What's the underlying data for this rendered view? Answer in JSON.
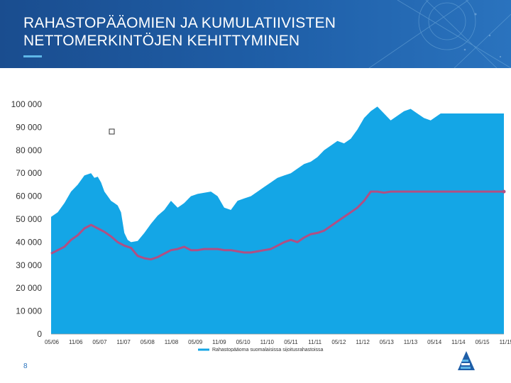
{
  "slide": {
    "title": "RAHASTOPÄÄOMIEN JA KUMULATIIVISTEN\nNETTOMERKINTÖJEN KEHITTYMINEN",
    "page_number": "8"
  },
  "colors": {
    "banner": "#1f5fa8",
    "area_fill": "#14a6e6",
    "line": "#b04f84",
    "accent": "#5fb7e8"
  },
  "logo": {
    "icon": "company-logo-icon"
  },
  "chart_data": {
    "type": "area",
    "title": "",
    "xlabel": "",
    "ylabel": "",
    "ylim": [
      0,
      100000
    ],
    "yticks": [
      "0",
      "10 000",
      "20 000",
      "30 000",
      "40 000",
      "50 000",
      "60 000",
      "70 000",
      "80 000",
      "90 000",
      "100 000"
    ],
    "xticks": [
      "05/06",
      "11/06",
      "05/07",
      "11/07",
      "05/08",
      "11/08",
      "05/09",
      "11/09",
      "05/10",
      "11/10",
      "05/11",
      "11/11",
      "05/12",
      "11/12",
      "05/13",
      "11/13",
      "05/14",
      "11/14",
      "05/15",
      "11/15"
    ],
    "grid": false,
    "legend_position": "bottom",
    "series": [
      {
        "name": "Rahastopääoma suomalaisissa sijoitusrahastoissa",
        "type": "area",
        "color": "#14a6e6",
        "x": [
          0,
          2,
          4,
          6,
          8,
          10,
          12,
          13,
          14,
          15,
          16,
          17,
          18,
          19,
          20,
          21,
          22,
          23,
          24,
          26,
          28,
          30,
          32,
          34,
          36,
          38,
          40,
          42,
          44,
          46,
          48,
          50,
          52,
          54,
          56,
          58,
          60,
          62,
          64,
          66,
          68,
          70,
          72,
          74,
          76,
          78,
          80,
          82,
          84,
          86,
          88,
          90,
          92,
          94,
          96,
          98,
          100,
          102,
          104,
          106,
          108,
          110,
          112,
          114,
          116,
          117,
          118,
          119,
          120,
          121,
          122,
          123,
          124,
          125,
          126,
          127,
          128,
          129,
          130,
          131,
          132,
          133,
          134,
          135,
          136
        ],
        "y": [
          51000,
          53000,
          57000,
          62000,
          65000,
          69000,
          70000,
          68000,
          68500,
          66000,
          62000,
          60000,
          58000,
          57000,
          56000,
          53000,
          44000,
          41000,
          40000,
          40500,
          44000,
          48000,
          51500,
          54000,
          58000,
          55000,
          57000,
          60000,
          61000,
          61500,
          62000,
          60000,
          55000,
          54000,
          58000,
          59000,
          60000,
          62000,
          64000,
          66000,
          68000,
          69000,
          70000,
          72000,
          74000,
          75000,
          77000,
          80000,
          82000,
          84000,
          83000,
          85000,
          89000,
          94000,
          97000,
          99000,
          96000,
          93000,
          95000,
          97000,
          98000,
          96000,
          94000,
          93000,
          95000,
          96000,
          96000,
          96000,
          96000,
          96000,
          96000,
          96000,
          96000,
          96000,
          96000,
          96000,
          96000,
          96000,
          96000,
          96000,
          96000,
          96000,
          96000,
          96000,
          96000
        ]
      },
      {
        "name": "",
        "type": "line",
        "color": "#b04f84",
        "x": [
          0,
          2,
          4,
          6,
          8,
          10,
          12,
          14,
          16,
          18,
          20,
          22,
          24,
          26,
          28,
          30,
          32,
          34,
          36,
          38,
          40,
          42,
          44,
          46,
          48,
          50,
          52,
          54,
          56,
          58,
          60,
          62,
          64,
          66,
          68,
          70,
          72,
          74,
          76,
          78,
          80,
          82,
          84,
          86,
          88,
          90,
          92,
          94,
          96,
          98,
          100,
          102,
          104,
          106,
          108,
          110,
          112,
          114,
          116,
          118,
          120,
          122,
          124,
          126,
          128,
          130,
          132,
          134,
          136
        ],
        "y": [
          35000,
          36500,
          38000,
          41000,
          43000,
          46000,
          47500,
          46000,
          44500,
          42500,
          40000,
          38500,
          37500,
          34000,
          33000,
          32500,
          33500,
          35000,
          36500,
          37000,
          38000,
          36500,
          36500,
          37000,
          37000,
          37000,
          36500,
          36500,
          36000,
          35500,
          35500,
          36000,
          36500,
          37000,
          38500,
          40000,
          41000,
          40000,
          42000,
          43500,
          44000,
          45000,
          47000,
          49000,
          51000,
          53000,
          55000,
          58000,
          62000,
          62000,
          61500,
          62000,
          62000,
          62000,
          62000,
          62000,
          62000,
          62000,
          62000,
          62000,
          62000,
          62000,
          62000,
          62000,
          62000,
          62000,
          62000,
          62000,
          62000
        ]
      }
    ],
    "x_range": [
      0,
      136
    ],
    "annotations": []
  }
}
